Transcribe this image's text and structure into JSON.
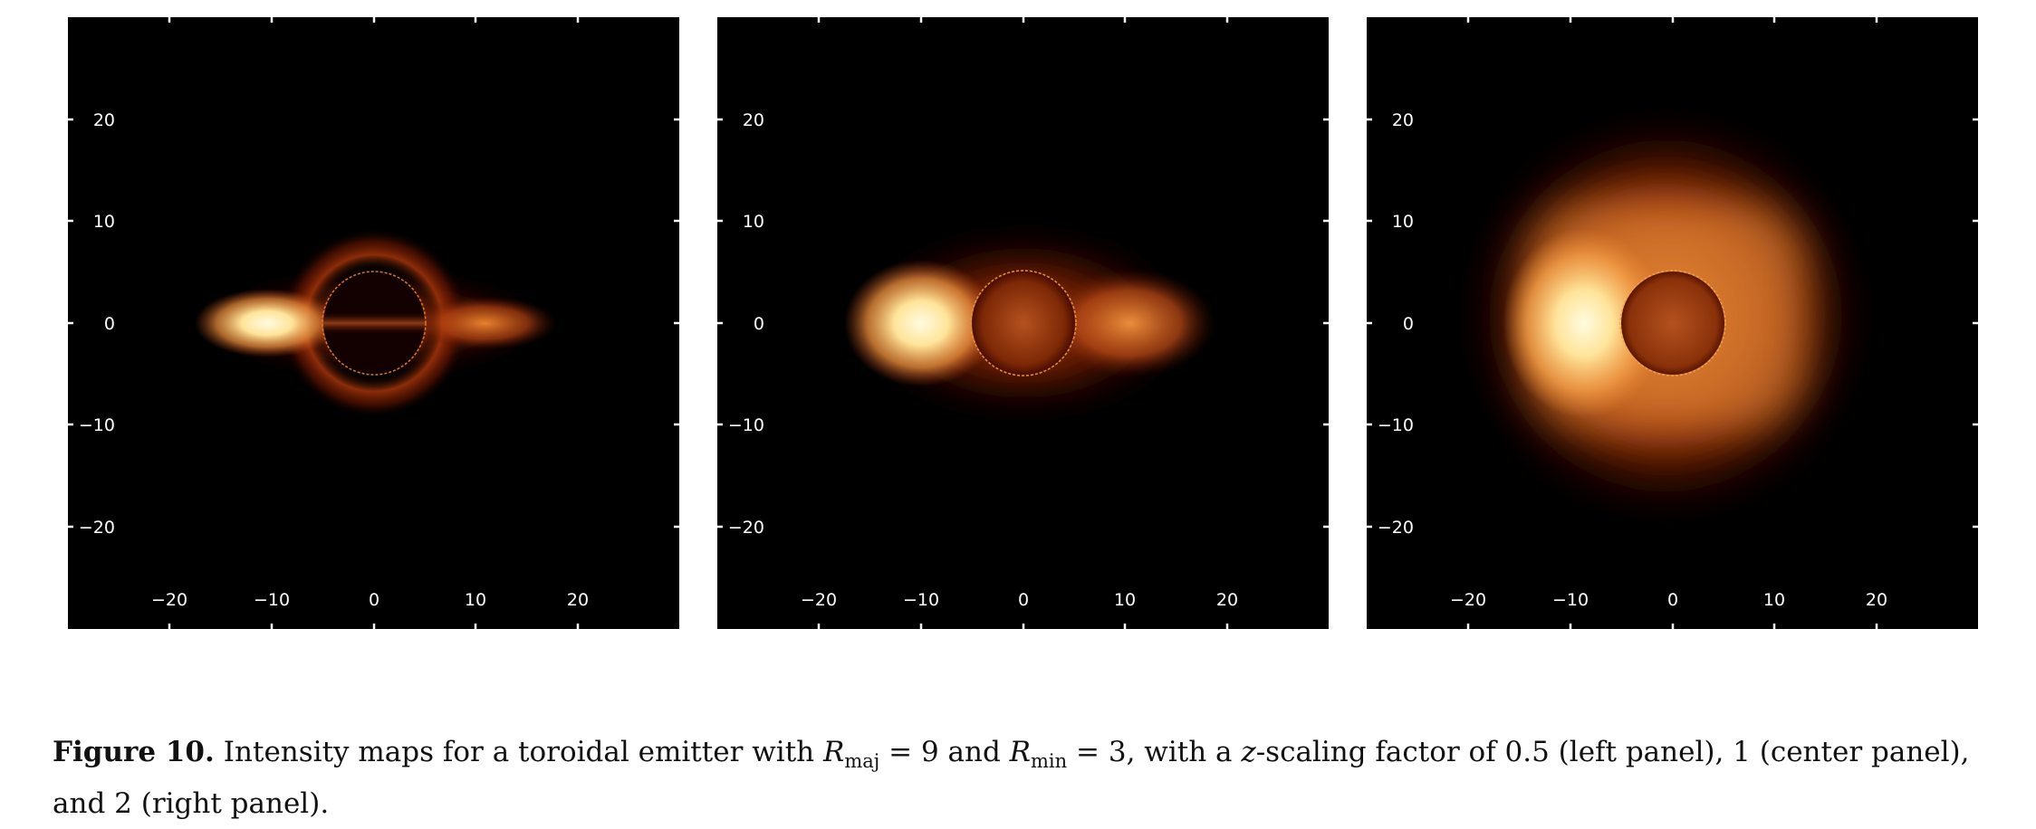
{
  "caption": {
    "label": "Figure 10.",
    "text_1": "Intensity maps for a toroidal emitter with ",
    "r_major_symbol": "R",
    "r_major_sub": "maj",
    "r_major_eq": " = 9 and ",
    "r_minor_symbol": "R",
    "r_minor_sub": "min",
    "r_minor_eq": " = 3, with a ",
    "z_symbol": "z",
    "text_2": "-scaling factor of 0.5 (left panel), 1 (center panel), and 2 (right panel)."
  },
  "colors": {
    "background": "#000000",
    "axis_ticks": "#ffffff",
    "colormap": [
      "#000000",
      "#3a0500",
      "#7a1800",
      "#b94a10",
      "#e88a3a",
      "#ffd27a",
      "#fffbe0"
    ]
  },
  "chart_data": [
    {
      "type": "heatmap",
      "panel": "left",
      "x_ticks": [
        "−20",
        "−10",
        "0",
        "10",
        "20"
      ],
      "y_ticks": [
        "20",
        "10",
        "0",
        "−10",
        "−20"
      ],
      "xlim": [
        -30,
        30
      ],
      "ylim": [
        -30,
        30
      ],
      "R_maj": 9,
      "R_min": 3,
      "z_scale": 0.5,
      "shadow_radius": 5.2
    },
    {
      "type": "heatmap",
      "panel": "center",
      "x_ticks": [
        "−20",
        "−10",
        "0",
        "10",
        "20"
      ],
      "y_ticks": [
        "20",
        "10",
        "0",
        "−10",
        "−20"
      ],
      "xlim": [
        -30,
        30
      ],
      "ylim": [
        -30,
        30
      ],
      "R_maj": 9,
      "R_min": 3,
      "z_scale": 1,
      "shadow_radius": 5.2
    },
    {
      "type": "heatmap",
      "panel": "right",
      "x_ticks": [
        "−20",
        "−10",
        "0",
        "10",
        "20"
      ],
      "y_ticks": [
        "20",
        "10",
        "0",
        "−10",
        "−20"
      ],
      "xlim": [
        -30,
        30
      ],
      "ylim": [
        -30,
        30
      ],
      "R_maj": 9,
      "R_min": 3,
      "z_scale": 2,
      "shadow_radius": 5.2
    }
  ]
}
